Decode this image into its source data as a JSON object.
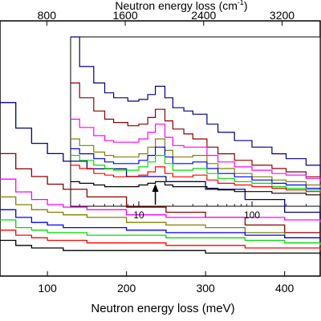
{
  "chart_data": {
    "type": "line",
    "main": {
      "xlabel": "Neutron energy loss (meV)",
      "x2label": "Neutron energy loss (cm",
      "x2label_sup": "-1",
      "x2label_tail": ")",
      "xlim": [
        40,
        445
      ],
      "ylim": [
        0,
        1
      ],
      "xticks": [
        100,
        200,
        300,
        400
      ],
      "xtick_labels": [
        "100",
        "200",
        "300",
        "400"
      ],
      "x2ticks_cm": [
        800,
        1600,
        2400,
        3200
      ],
      "x2tick_labels": [
        "800",
        "1600",
        "2400",
        "3200"
      ],
      "mev_per_cm": 0.124,
      "series": [
        {
          "color": "#000080",
          "x": [
            40,
            60,
            80,
            100,
            120,
            150,
            200,
            250,
            300,
            350,
            400,
            445
          ],
          "y": [
            0.68,
            0.58,
            0.52,
            0.48,
            0.45,
            0.42,
            0.39,
            0.37,
            0.34,
            0.3,
            0.25,
            0.22
          ]
        },
        {
          "color": "#8B0000",
          "x": [
            40,
            60,
            80,
            100,
            120,
            150,
            200,
            250,
            300,
            350,
            400,
            445
          ],
          "y": [
            0.48,
            0.42,
            0.39,
            0.36,
            0.34,
            0.31,
            0.27,
            0.25,
            0.23,
            0.2,
            0.17,
            0.15
          ]
        },
        {
          "color": "#FF00FF",
          "x": [
            40,
            60,
            80,
            100,
            120,
            150,
            200,
            250,
            300,
            350,
            400,
            445
          ],
          "y": [
            0.38,
            0.33,
            0.3,
            0.28,
            0.27,
            0.26,
            0.24,
            0.23,
            0.23,
            0.23,
            0.22,
            0.21
          ]
        },
        {
          "color": "#808000",
          "x": [
            40,
            60,
            80,
            100,
            120,
            150,
            200,
            250,
            300,
            350,
            400,
            445
          ],
          "y": [
            0.31,
            0.28,
            0.26,
            0.25,
            0.24,
            0.23,
            0.21,
            0.2,
            0.19,
            0.17,
            0.15,
            0.14
          ]
        },
        {
          "color": "#0000FF",
          "x": [
            40,
            60,
            80,
            100,
            120,
            150,
            200,
            250,
            300,
            350,
            400,
            445
          ],
          "y": [
            0.26,
            0.23,
            0.21,
            0.2,
            0.19,
            0.19,
            0.18,
            0.17,
            0.17,
            0.16,
            0.15,
            0.14
          ]
        },
        {
          "color": "#00DD00",
          "x": [
            40,
            60,
            80,
            100,
            120,
            150,
            200,
            250,
            300,
            350,
            400,
            445
          ],
          "y": [
            0.22,
            0.19,
            0.18,
            0.17,
            0.17,
            0.16,
            0.16,
            0.15,
            0.15,
            0.14,
            0.13,
            0.12
          ]
        },
        {
          "color": "#FF0000",
          "x": [
            40,
            60,
            80,
            100,
            120,
            150,
            200,
            250,
            300,
            350,
            400,
            445
          ],
          "y": [
            0.18,
            0.16,
            0.15,
            0.14,
            0.14,
            0.13,
            0.13,
            0.12,
            0.12,
            0.11,
            0.11,
            0.1
          ]
        },
        {
          "color": "#000000",
          "x": [
            40,
            60,
            80,
            100,
            120,
            150,
            200,
            250,
            300,
            350,
            400,
            445
          ],
          "y": [
            0.14,
            0.12,
            0.11,
            0.11,
            0.1,
            0.1,
            0.1,
            0.1,
            0.09,
            0.09,
            0.09,
            0.08
          ]
        }
      ]
    },
    "inset": {
      "xscale": "log",
      "xlim": [
        2.5,
        400
      ],
      "ylim": [
        0,
        1
      ],
      "xticks": [
        10,
        100
      ],
      "xtick_labels": [
        "10",
        "100"
      ],
      "arrow_x": 14,
      "series": [
        {
          "color": "#000080",
          "x": [
            2.5,
            3,
            4,
            5,
            6,
            8,
            10,
            12,
            14,
            17,
            20,
            25,
            30,
            40,
            50,
            70,
            100,
            150,
            200,
            300,
            400
          ],
          "y": [
            1.0,
            0.82,
            0.72,
            0.66,
            0.63,
            0.61,
            0.62,
            0.65,
            0.7,
            0.63,
            0.57,
            0.55,
            0.53,
            0.47,
            0.42,
            0.37,
            0.33,
            0.29,
            0.26,
            0.22,
            0.18
          ]
        },
        {
          "color": "#8B0000",
          "x": [
            2.5,
            3,
            4,
            5,
            6,
            8,
            10,
            12,
            14,
            17,
            20,
            25,
            30,
            40,
            50,
            70,
            100,
            150,
            200,
            300,
            400
          ],
          "y": [
            0.72,
            0.63,
            0.55,
            0.5,
            0.48,
            0.46,
            0.47,
            0.51,
            0.56,
            0.49,
            0.44,
            0.41,
            0.38,
            0.33,
            0.29,
            0.25,
            0.22,
            0.2,
            0.18,
            0.15,
            0.12
          ]
        },
        {
          "color": "#FF00FF",
          "x": [
            2.5,
            3,
            4,
            5,
            6,
            8,
            10,
            12,
            14,
            17,
            20,
            25,
            30,
            40,
            50,
            70,
            100,
            150,
            200,
            300,
            400
          ],
          "y": [
            0.5,
            0.45,
            0.4,
            0.37,
            0.36,
            0.36,
            0.38,
            0.42,
            0.47,
            0.39,
            0.34,
            0.33,
            0.33,
            0.28,
            0.24,
            0.21,
            0.19,
            0.17,
            0.16,
            0.14,
            0.12
          ]
        },
        {
          "color": "#808000",
          "x": [
            2.5,
            3,
            4,
            5,
            6,
            8,
            10,
            12,
            14,
            17,
            20,
            25,
            30,
            40,
            50,
            70,
            100,
            150,
            200,
            300,
            400
          ],
          "y": [
            0.38,
            0.34,
            0.3,
            0.28,
            0.27,
            0.27,
            0.29,
            0.33,
            0.38,
            0.31,
            0.27,
            0.27,
            0.28,
            0.23,
            0.2,
            0.17,
            0.15,
            0.13,
            0.12,
            0.1,
            0.08
          ]
        },
        {
          "color": "#0000FF",
          "x": [
            2.5,
            3,
            4,
            5,
            6,
            8,
            10,
            12,
            14,
            17,
            20,
            25,
            30,
            40,
            50,
            70,
            100,
            150,
            200,
            300,
            400
          ],
          "y": [
            0.32,
            0.29,
            0.26,
            0.24,
            0.23,
            0.23,
            0.25,
            0.28,
            0.33,
            0.27,
            0.23,
            0.23,
            0.24,
            0.2,
            0.17,
            0.15,
            0.13,
            0.11,
            0.1,
            0.08,
            0.07
          ]
        },
        {
          "color": "#00DD00",
          "x": [
            2.5,
            3,
            4,
            5,
            6,
            8,
            10,
            12,
            14,
            17,
            20,
            25,
            30,
            40,
            50,
            70,
            100,
            150,
            200,
            300,
            400
          ],
          "y": [
            0.28,
            0.25,
            0.22,
            0.2,
            0.19,
            0.19,
            0.21,
            0.24,
            0.28,
            0.23,
            0.19,
            0.19,
            0.2,
            0.17,
            0.14,
            0.12,
            0.11,
            0.09,
            0.08,
            0.07,
            0.06
          ]
        },
        {
          "color": "#FF0000",
          "x": [
            2.5,
            3,
            4,
            5,
            6,
            8,
            10,
            12,
            14,
            17,
            20,
            25,
            30,
            40,
            50,
            70,
            100,
            150,
            200,
            300,
            400
          ],
          "y": [
            0.22,
            0.2,
            0.17,
            0.16,
            0.15,
            0.15,
            0.16,
            0.18,
            0.21,
            0.17,
            0.15,
            0.15,
            0.16,
            0.13,
            0.11,
            0.1,
            0.09,
            0.08,
            0.07,
            0.06,
            0.05
          ]
        },
        {
          "color": "#000000",
          "x": [
            2.5,
            3,
            4,
            5,
            6,
            8,
            10,
            12,
            14,
            17,
            20,
            25,
            30,
            40,
            50,
            70,
            100,
            150,
            200,
            300,
            400
          ],
          "y": [
            0.12,
            0.11,
            0.1,
            0.09,
            0.09,
            0.09,
            0.1,
            0.11,
            0.12,
            0.1,
            0.09,
            0.09,
            0.09,
            0.08,
            0.07,
            0.06,
            0.06,
            0.05,
            0.05,
            0.04,
            0.04
          ]
        }
      ]
    }
  }
}
